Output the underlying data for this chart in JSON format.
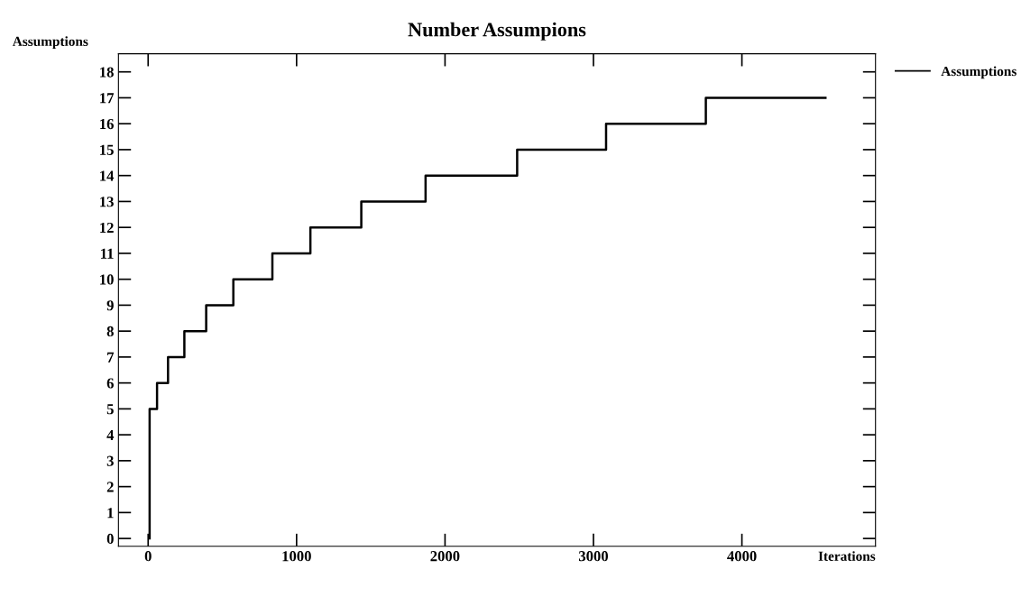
{
  "chart_data": {
    "type": "step",
    "title": "Number Assumpions",
    "xlabel": "Iterations",
    "ylabel": "Assumptions",
    "x": [
      10,
      10,
      60,
      134,
      244,
      391,
      574,
      837,
      1093,
      1436,
      1869,
      2486,
      3085,
      3757,
      4563
    ],
    "series": [
      {
        "name": "Assumptions",
        "color": "#000000",
        "values": [
          0,
          5,
          6,
          7,
          8,
          9,
          10,
          11,
          12,
          13,
          14,
          15,
          16,
          17,
          17
        ]
      }
    ],
    "xlim": [
      -200,
      4900
    ],
    "xticks": [
      0,
      1000,
      2000,
      3000,
      4000
    ],
    "ylim": [
      -0.3,
      18.7
    ],
    "yticks": [
      0,
      1,
      2,
      3,
      4,
      5,
      6,
      7,
      8,
      9,
      10,
      11,
      12,
      13,
      14,
      15,
      16,
      17,
      18
    ],
    "legend": "top right",
    "grid": false
  }
}
